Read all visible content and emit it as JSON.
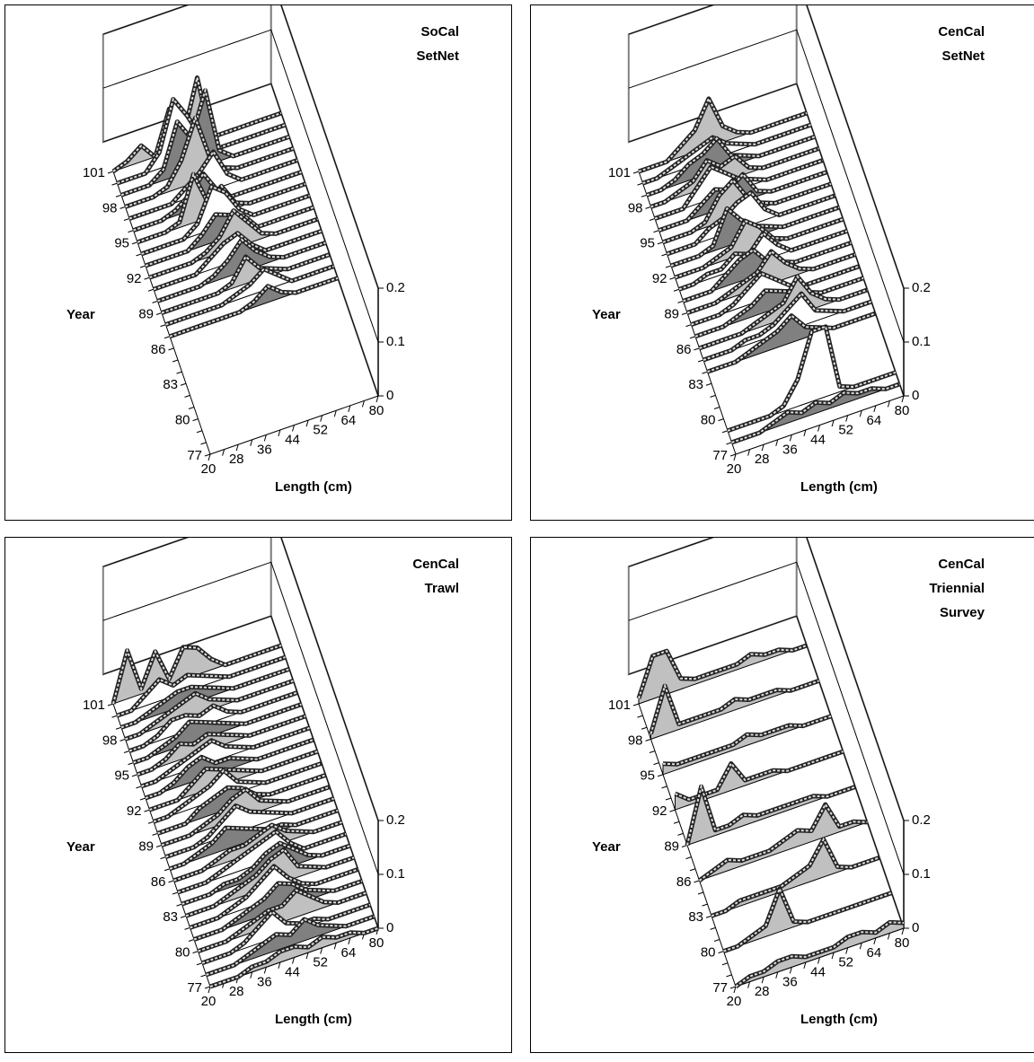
{
  "chart_data": [
    {
      "type": "ribbon3d",
      "title": [
        "SoCal",
        "SetNet"
      ],
      "x_label": "Length (cm)",
      "y_label": "Year",
      "categories": [
        20,
        null,
        28,
        null,
        36,
        null,
        44,
        null,
        52,
        null,
        64,
        null,
        80
      ],
      "years": [
        77,
        null,
        null,
        80,
        null,
        null,
        83,
        null,
        null,
        86,
        null,
        null,
        89,
        null,
        null,
        92,
        null,
        null,
        95,
        null,
        null,
        98,
        null,
        null,
        101
      ],
      "zlim": [
        0,
        0.2
      ],
      "zticks": [
        0,
        0.1,
        0.2
      ],
      "colors": [
        "#c0c0c0",
        "#808080",
        "#ffffff"
      ],
      "values": [
        null,
        null,
        null,
        null,
        null,
        null,
        null,
        null,
        null,
        null,
        [
          0,
          0,
          0,
          0,
          0,
          0,
          0.01,
          0.03,
          0.01,
          0,
          0,
          0,
          0
        ],
        [
          0,
          0,
          0,
          0,
          0,
          0.01,
          0.02,
          0.04,
          0.02,
          0,
          0,
          0,
          0
        ],
        [
          0,
          0,
          0,
          0,
          0,
          0.01,
          0.05,
          0.02,
          0.01,
          0,
          0,
          0,
          0
        ],
        [
          0,
          0,
          0,
          0,
          0.01,
          0.03,
          0.06,
          0.03,
          0.01,
          0,
          0,
          0,
          0
        ],
        [
          0,
          0,
          0,
          0,
          0.02,
          0.04,
          0.05,
          0.02,
          0,
          0,
          0,
          0,
          0
        ],
        [
          0,
          0,
          0,
          0,
          0.01,
          0.03,
          0.07,
          0.04,
          0.01,
          0,
          0,
          0,
          0
        ],
        [
          0,
          0,
          0,
          0,
          0.02,
          0.05,
          0.04,
          0.03,
          0,
          0,
          0,
          0,
          0
        ],
        [
          0,
          0,
          0,
          0,
          0.02,
          0.08,
          0.06,
          0.02,
          0,
          0,
          0,
          0,
          0
        ],
        [
          0,
          0,
          0,
          0.01,
          0.09,
          0.03,
          0.05,
          0.01,
          0,
          0,
          0,
          0,
          0
        ],
        [
          0,
          0,
          0,
          0.01,
          0.03,
          0.06,
          0.02,
          0,
          0,
          0,
          0,
          0,
          0
        ],
        [
          0,
          0,
          0,
          0,
          0.02,
          0.04,
          0.07,
          0.02,
          0,
          0,
          0,
          0,
          0
        ],
        [
          0,
          0,
          0,
          0.01,
          0.05,
          0.12,
          0.04,
          0.01,
          0,
          0,
          0,
          0,
          0
        ],
        [
          0,
          0,
          0,
          0.02,
          0.1,
          0.06,
          0.14,
          0.02,
          0,
          0,
          0,
          0,
          0
        ],
        [
          0,
          0,
          0,
          0.03,
          0.12,
          0.08,
          0.03,
          0,
          0,
          0,
          0,
          0,
          0
        ],
        [
          0,
          0.01,
          0.03,
          0,
          0.08,
          0.02,
          0.12,
          0,
          0,
          0,
          0,
          0,
          0
        ]
      ]
    },
    {
      "type": "ribbon3d",
      "title": [
        "CenCal",
        "SetNet"
      ],
      "x_label": "Length (cm)",
      "y_label": "Year",
      "categories": [
        20,
        null,
        28,
        null,
        36,
        null,
        44,
        null,
        52,
        null,
        64,
        null,
        80
      ],
      "years": [
        77,
        null,
        null,
        80,
        null,
        null,
        83,
        null,
        null,
        86,
        null,
        null,
        89,
        null,
        null,
        92,
        null,
        null,
        95,
        null,
        null,
        98,
        null,
        null,
        101
      ],
      "zlim": [
        0,
        0.2
      ],
      "zticks": [
        0,
        0.1,
        0.2
      ],
      "colors": [
        "#c0c0c0",
        "#808080",
        "#ffffff"
      ],
      "values": [
        null,
        [
          0,
          0,
          0,
          0.01,
          0.02,
          0.01,
          0.02,
          0.01,
          0.02,
          0.01,
          0.01,
          0,
          0
        ],
        [
          0,
          0,
          0,
          0,
          0.01,
          0.05,
          0.13,
          0.13,
          0.01,
          0,
          0,
          0,
          0
        ],
        null,
        null,
        null,
        null,
        [
          0,
          0,
          0,
          0.01,
          0.02,
          0.03,
          0.05,
          0.02,
          0.01,
          0,
          0,
          0,
          0
        ],
        [
          0,
          0,
          0,
          0.01,
          0.01,
          0.02,
          0.04,
          0.06,
          0.02,
          0.01,
          0,
          0,
          0
        ],
        [
          0,
          0,
          0,
          0,
          0.01,
          0.02,
          0.03,
          0.07,
          0.03,
          0.01,
          0,
          0,
          0
        ],
        [
          0,
          0,
          0,
          0.01,
          0.02,
          0.04,
          0.03,
          0.02,
          0.01,
          0,
          0,
          0,
          0
        ],
        [
          0,
          0,
          0,
          0.01,
          0.03,
          0.05,
          0.03,
          0.01,
          0,
          0,
          0,
          0,
          0
        ],
        [
          0,
          0,
          0,
          0.01,
          0.02,
          0.03,
          0.06,
          0.03,
          0.01,
          0,
          0,
          0,
          0
        ],
        [
          0,
          0,
          0,
          0.02,
          0.04,
          0.05,
          0.02,
          0.01,
          0,
          0,
          0,
          0,
          0
        ],
        [
          0,
          0,
          0.01,
          0.01,
          0.03,
          0.02,
          0.05,
          0.02,
          0,
          0,
          0,
          0,
          0
        ],
        [
          0,
          0,
          0,
          0.01,
          0.02,
          0.06,
          0.04,
          0.01,
          0,
          0,
          0,
          0,
          0
        ],
        [
          0,
          0,
          0,
          0.01,
          0.07,
          0.04,
          0.02,
          0.01,
          0,
          0,
          0,
          0,
          0
        ],
        [
          0,
          0,
          0,
          0.02,
          0.03,
          0.05,
          0.06,
          0.02,
          0,
          0,
          0,
          0,
          0
        ],
        [
          0,
          0,
          0,
          0.01,
          0.05,
          0.07,
          0.03,
          0.01,
          0,
          0,
          0,
          0,
          0
        ],
        [
          0,
          0,
          0,
          0.02,
          0.04,
          0.03,
          0.05,
          0.01,
          0,
          0,
          0,
          0,
          0
        ],
        [
          0,
          0,
          0,
          0.03,
          0.06,
          0.04,
          0.02,
          0.01,
          0,
          0,
          0,
          0,
          0
        ],
        [
          0,
          0,
          0.01,
          0.02,
          0.05,
          0.03,
          0.04,
          0.01,
          0,
          0,
          0,
          0,
          0
        ],
        [
          0,
          0,
          0.01,
          0.03,
          0.04,
          0.06,
          0.02,
          0.01,
          0,
          0,
          0,
          0,
          0
        ],
        [
          0,
          0,
          0.01,
          0.02,
          0.03,
          0.04,
          0.02,
          0.01,
          0,
          0,
          0,
          0,
          0
        ],
        [
          0,
          0,
          0,
          0.02,
          0.04,
          0.09,
          0.03,
          0.01,
          0,
          0,
          0,
          0,
          0
        ]
      ]
    },
    {
      "type": "ribbon3d",
      "title": [
        "CenCal",
        "Trawl"
      ],
      "x_label": "Length (cm)",
      "y_label": "Year",
      "categories": [
        20,
        null,
        28,
        null,
        36,
        null,
        44,
        null,
        52,
        null,
        64,
        null,
        80
      ],
      "years": [
        77,
        null,
        null,
        80,
        null,
        null,
        83,
        null,
        null,
        86,
        null,
        null,
        89,
        null,
        null,
        92,
        null,
        null,
        95,
        null,
        null,
        98,
        null,
        null,
        101
      ],
      "zlim": [
        0,
        0.2
      ],
      "zticks": [
        0,
        0.1,
        0.2
      ],
      "colors": [
        "#c0c0c0",
        "#808080",
        "#ffffff"
      ],
      "values": [
        [
          0,
          0,
          0,
          0.01,
          0.01,
          0.02,
          0.02,
          0.01,
          0.02,
          0.01,
          0.01,
          0,
          0
        ],
        [
          0,
          0,
          0,
          0.01,
          0.02,
          0.03,
          0.02,
          0.04,
          0.02,
          0.01,
          0,
          0,
          0
        ],
        [
          0,
          0,
          0,
          0.01,
          0.03,
          0.05,
          0.02,
          0.01,
          0.01,
          0,
          0,
          0,
          0
        ],
        [
          0,
          0,
          0,
          0.01,
          0.02,
          0.03,
          0.03,
          0.05,
          0.03,
          0.01,
          0,
          0,
          0
        ],
        [
          0,
          0,
          0,
          0.01,
          0.02,
          0.03,
          0.05,
          0.04,
          0.02,
          0.01,
          0,
          0,
          0
        ],
        [
          0,
          0,
          0,
          0.01,
          0.02,
          0.04,
          0.06,
          0.03,
          0.01,
          0,
          0,
          0,
          0
        ],
        [
          0,
          0,
          0,
          0.01,
          0.02,
          0.03,
          0.05,
          0.06,
          0.02,
          0.01,
          0,
          0,
          0
        ],
        [
          0,
          0,
          0,
          0.01,
          0.01,
          0.02,
          0.04,
          0.05,
          0.03,
          0.01,
          0,
          0,
          0
        ],
        [
          0,
          0,
          0,
          0.01,
          0.02,
          0.03,
          0.04,
          0.05,
          0.02,
          0,
          0,
          0,
          0
        ],
        [
          0,
          0,
          0,
          0.01,
          0.02,
          0.02,
          0.03,
          0.04,
          0.02,
          0.01,
          0,
          0,
          0
        ],
        [
          0,
          0,
          0.01,
          0.02,
          0.04,
          0.03,
          0.02,
          0.01,
          0.01,
          0,
          0,
          0,
          0
        ],
        [
          0,
          0,
          0,
          0.01,
          0.03,
          0.05,
          0.03,
          0.02,
          0.01,
          0,
          0,
          0,
          0
        ],
        [
          0,
          0,
          0,
          0.01,
          0.02,
          0.04,
          0.05,
          0.02,
          0.01,
          0,
          0,
          0,
          0
        ],
        [
          0,
          0,
          0,
          0.02,
          0.03,
          0.04,
          0.03,
          0.01,
          0,
          0,
          0,
          0,
          0
        ],
        [
          0,
          0,
          0.01,
          0.02,
          0.03,
          0.05,
          0.02,
          0.01,
          0,
          0,
          0,
          0,
          0
        ],
        [
          0,
          0,
          0,
          0.02,
          0.04,
          0.03,
          0.02,
          0.01,
          0,
          0,
          0,
          0,
          0
        ],
        [
          0,
          0,
          0.01,
          0.03,
          0.04,
          0.02,
          0.02,
          0.01,
          0,
          0,
          0,
          0,
          0
        ],
        [
          0,
          0,
          0.01,
          0.02,
          0.03,
          0.04,
          0.02,
          0.01,
          0,
          0,
          0,
          0,
          0
        ],
        [
          0,
          0,
          0.01,
          0.03,
          0.02,
          0.03,
          0.02,
          0.01,
          0,
          0,
          0,
          0,
          0
        ],
        [
          0,
          0,
          0.01,
          0.02,
          0.04,
          0.03,
          0.02,
          0.01,
          0,
          0,
          0,
          0,
          0
        ],
        [
          0,
          0,
          0.01,
          0.03,
          0.03,
          0.02,
          0.03,
          0.01,
          0,
          0,
          0,
          0,
          0
        ],
        [
          0,
          0,
          0.01,
          0.02,
          0.03,
          0.04,
          0.02,
          0.01,
          0,
          0,
          0,
          0,
          0
        ],
        [
          0,
          0,
          0.01,
          0.02,
          0.03,
          0.03,
          0.02,
          0.01,
          0,
          0,
          0,
          0,
          0
        ],
        [
          0,
          0,
          0.02,
          0.04,
          0.02,
          0.03,
          0.02,
          0.01,
          0,
          0,
          0,
          0,
          0
        ],
        [
          0,
          0.09,
          0.01,
          0.07,
          0.01,
          0.06,
          0.05,
          0.02,
          0,
          0,
          0,
          0,
          0
        ]
      ]
    },
    {
      "type": "ribbon3d",
      "title": [
        "CenCal",
        "Triennial",
        "Survey"
      ],
      "x_label": "Length (cm)",
      "y_label": "Year",
      "categories": [
        20,
        null,
        28,
        null,
        36,
        null,
        44,
        null,
        52,
        null,
        64,
        null,
        80
      ],
      "years": [
        77,
        null,
        null,
        80,
        null,
        null,
        83,
        null,
        null,
        86,
        null,
        null,
        89,
        null,
        null,
        92,
        null,
        null,
        95,
        null,
        null,
        98,
        null,
        null,
        101
      ],
      "zlim": [
        0,
        0.2
      ],
      "zticks": [
        0,
        0.1,
        0.2
      ],
      "colors": [
        "#c0c0c0",
        "#808080",
        "#ffffff"
      ],
      "values": [
        [
          0,
          0.01,
          0.01,
          0.02,
          0.02,
          0.01,
          0.01,
          0.01,
          0.02,
          0.02,
          0.01,
          0.02,
          0.01
        ],
        null,
        null,
        [
          0,
          0,
          0.01,
          0.02,
          0.08,
          0.01,
          0,
          0,
          0,
          0,
          0,
          0,
          0
        ],
        null,
        null,
        [
          0,
          0,
          0.01,
          0.01,
          0.01,
          0.01,
          0.02,
          0.03,
          0.07,
          0.01,
          0,
          0,
          0
        ],
        null,
        null,
        [
          0,
          0.01,
          0.02,
          0.01,
          0.01,
          0.01,
          0.02,
          0.03,
          0.02,
          0.06,
          0.01,
          0.01,
          0
        ],
        null,
        null,
        [
          0,
          0.1,
          0.01,
          0.01,
          0.02,
          0.01,
          0.01,
          0.01,
          0.01,
          0.01,
          0,
          0,
          0
        ],
        null,
        null,
        [
          0.03,
          0.01,
          0.01,
          0.01,
          0.05,
          0.01,
          0.01,
          0.01,
          0,
          0,
          0,
          0,
          0
        ],
        null,
        null,
        [
          0.02,
          0.01,
          0.01,
          0.01,
          0.01,
          0.01,
          0.02,
          0.01,
          0.01,
          0.01,
          0,
          0,
          0
        ],
        null,
        null,
        [
          0.01,
          0.09,
          0.01,
          0.01,
          0.01,
          0.01,
          0.02,
          0.01,
          0.01,
          0.01,
          0,
          0,
          0
        ],
        null,
        null,
        [
          0.01,
          0.08,
          0.08,
          0.02,
          0.01,
          0.01,
          0.01,
          0.01,
          0.02,
          0.01,
          0.01,
          0,
          0
        ]
      ]
    }
  ]
}
